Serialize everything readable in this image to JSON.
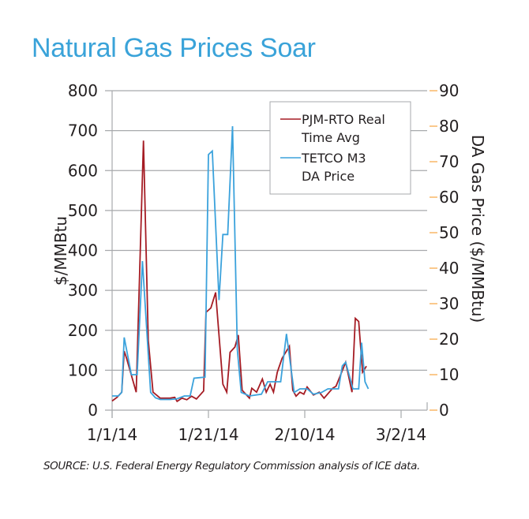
{
  "chart_data": {
    "type": "line",
    "title": "Natural Gas Prices Soar",
    "source": "SOURCE: U.S. Federal Energy Regulatory Commission analysis of ICE data.",
    "xlabel": "",
    "ylabel": "$/MMBtu",
    "y2label": "DA Gas Price ($/MMBtu)",
    "ylim": [
      0,
      800
    ],
    "y2lim": [
      0,
      90
    ],
    "yticks": [
      "0",
      "100",
      "200",
      "300",
      "400",
      "500",
      "600",
      "700",
      "800"
    ],
    "y2ticks": [
      "0",
      "10",
      "20",
      "30",
      "40",
      "50",
      "60",
      "70",
      "80",
      "90"
    ],
    "xlim_days": [
      0,
      65
    ],
    "xticks": [
      {
        "label": "1/1/14",
        "day": 0
      },
      {
        "label": "1/21/14",
        "day": 20
      },
      {
        "label": "2/10/14",
        "day": 40
      },
      {
        "label": "3/2/14",
        "day": 60
      }
    ],
    "grid": true,
    "legend_position": "top-right",
    "series": [
      {
        "name": "PJM-RTO Real Time Avg",
        "axis": "left",
        "color": "#a51c24",
        "points": [
          [
            0,
            23
          ],
          [
            1,
            32
          ],
          [
            2,
            45
          ],
          [
            2.5,
            148
          ],
          [
            3,
            130
          ],
          [
            5,
            45
          ],
          [
            6.5,
            675
          ],
          [
            7.5,
            175
          ],
          [
            8.5,
            45
          ],
          [
            10,
            30
          ],
          [
            12,
            30
          ],
          [
            13,
            32
          ],
          [
            13.5,
            22
          ],
          [
            14.5,
            30
          ],
          [
            15.5,
            26
          ],
          [
            16.5,
            35
          ],
          [
            17.5,
            28
          ],
          [
            19,
            48
          ],
          [
            19.5,
            245
          ],
          [
            20.5,
            256
          ],
          [
            21.5,
            295
          ],
          [
            23,
            65
          ],
          [
            23.8,
            45
          ],
          [
            24.5,
            145
          ],
          [
            25.5,
            158
          ],
          [
            26.2,
            188
          ],
          [
            27,
            50
          ],
          [
            28.5,
            30
          ],
          [
            29,
            55
          ],
          [
            30,
            45
          ],
          [
            31.2,
            78
          ],
          [
            32,
            45
          ],
          [
            32.8,
            65
          ],
          [
            33.5,
            45
          ],
          [
            34.3,
            95
          ],
          [
            35.3,
            130
          ],
          [
            36.8,
            160
          ],
          [
            37.5,
            50
          ],
          [
            38.2,
            35
          ],
          [
            39,
            45
          ],
          [
            39.8,
            40
          ],
          [
            40.5,
            58
          ],
          [
            41.8,
            38
          ],
          [
            43,
            45
          ],
          [
            44,
            30
          ],
          [
            45.8,
            55
          ],
          [
            46.5,
            60
          ],
          [
            48.5,
            120
          ],
          [
            49.8,
            45
          ],
          [
            50.5,
            230
          ],
          [
            51.2,
            222
          ],
          [
            52,
            95
          ],
          [
            52.8,
            110
          ]
        ]
      },
      {
        "name": "TETCO M3 DA Price",
        "axis": "right",
        "color": "#3ba2dc",
        "points": [
          [
            0,
            4
          ],
          [
            1.3,
            4
          ],
          [
            2,
            5
          ],
          [
            2.5,
            20.5
          ],
          [
            4,
            10
          ],
          [
            5.2,
            10
          ],
          [
            6.3,
            42
          ],
          [
            8,
            5
          ],
          [
            9,
            3.5
          ],
          [
            10,
            3
          ],
          [
            12,
            3
          ],
          [
            13.5,
            3.2
          ],
          [
            15,
            4
          ],
          [
            16.2,
            4
          ],
          [
            17,
            9
          ],
          [
            19.3,
            9.3
          ],
          [
            20,
            72
          ],
          [
            20.8,
            73
          ],
          [
            22.2,
            31
          ],
          [
            23,
            49.5
          ],
          [
            24,
            49.5
          ],
          [
            25,
            80
          ],
          [
            26,
            17
          ],
          [
            26.8,
            5
          ],
          [
            28.5,
            4
          ],
          [
            31,
            4.5
          ],
          [
            32.3,
            8
          ],
          [
            33.5,
            8
          ],
          [
            35,
            8
          ],
          [
            36.2,
            21.5
          ],
          [
            37.8,
            5
          ],
          [
            39,
            6
          ],
          [
            40.5,
            6
          ],
          [
            41.8,
            4.5
          ],
          [
            43.5,
            5
          ],
          [
            44.8,
            6
          ],
          [
            47,
            6
          ],
          [
            47.8,
            12.5
          ],
          [
            48.5,
            13.5
          ],
          [
            50,
            6
          ],
          [
            51.2,
            6
          ],
          [
            51.8,
            19
          ],
          [
            52.5,
            8
          ],
          [
            53.2,
            6
          ]
        ]
      }
    ]
  }
}
